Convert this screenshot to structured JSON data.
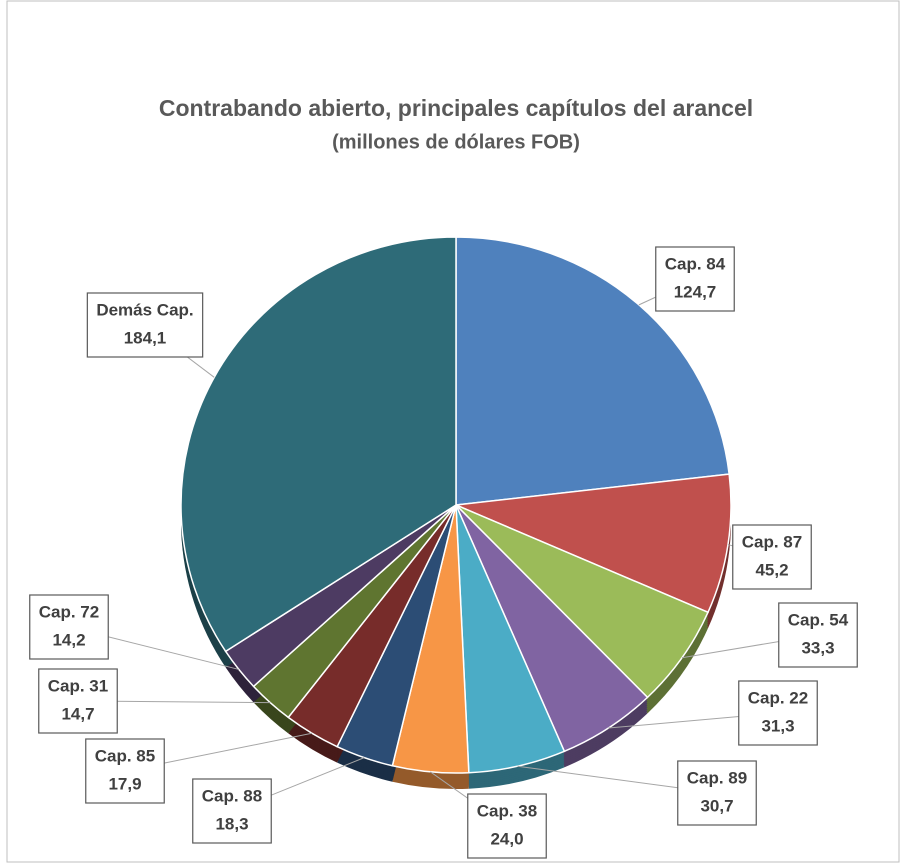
{
  "chart_data": {
    "type": "pie",
    "title": "Contrabando abierto, principales capítulos del arancel",
    "subtitle": "(millones de dólares FOB)",
    "categories": [
      "Cap. 84",
      "Cap. 87",
      "Cap. 54",
      "Cap. 22",
      "Cap. 89",
      "Cap. 38",
      "Cap. 88",
      "Cap. 85",
      "Cap. 31",
      "Cap. 72",
      "Demás Cap."
    ],
    "values": [
      124.7,
      45.2,
      33.3,
      31.3,
      30.7,
      24.0,
      18.3,
      17.9,
      14.7,
      14.2,
      184.1
    ],
    "value_labels": [
      "124,7",
      "45,2",
      "33,3",
      "31,3",
      "30,7",
      "24,0",
      "18,3",
      "17,9",
      "14,7",
      "14,2",
      "184,1"
    ],
    "colors": [
      "#4f81bd",
      "#c0504d",
      "#9bbb59",
      "#8064a2",
      "#4bacc6",
      "#f79646",
      "#2c4d75",
      "#772c2a",
      "#5f7530",
      "#4d3b62",
      "#2e6b78"
    ]
  }
}
